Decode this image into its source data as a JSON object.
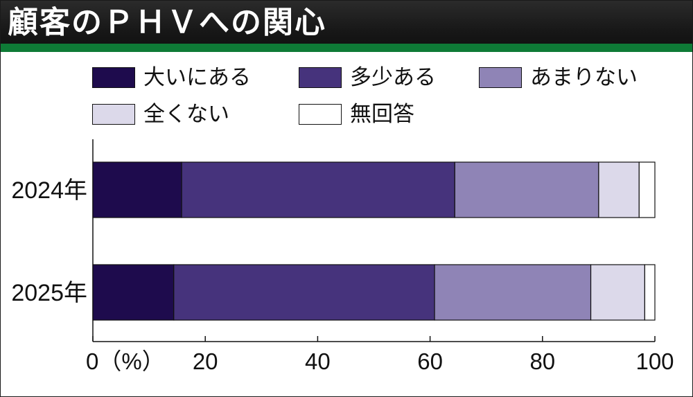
{
  "title": "顧客のＰＨＶへの関心",
  "colors": {
    "header_bg": "#1a1a1a",
    "header_stripe": "#0e7a36",
    "series": [
      "#1e0b4d",
      "#46337c",
      "#8f84b6",
      "#dcd9ea",
      "#ffffff"
    ]
  },
  "legend": [
    "大いにある",
    "多少ある",
    "あまりない",
    "全くない",
    "無回答"
  ],
  "chart_data": {
    "type": "bar",
    "orientation": "horizontal",
    "stacked": true,
    "title": "顧客のＰＨＶへの関心",
    "categories": [
      "2024年",
      "2025年"
    ],
    "series": [
      {
        "name": "大いにある",
        "values": [
          15.8,
          14.4
        ]
      },
      {
        "name": "多少ある",
        "values": [
          48.6,
          46.4
        ]
      },
      {
        "name": "あまりない",
        "values": [
          25.6,
          27.8
        ]
      },
      {
        "name": "全くない",
        "values": [
          7.2,
          9.6
        ]
      },
      {
        "name": "無回答",
        "values": [
          2.8,
          1.8
        ]
      }
    ],
    "xlim": [
      0,
      100
    ],
    "x_ticks": [
      "0（%）",
      "20",
      "40",
      "60",
      "80",
      "100"
    ],
    "grid": false,
    "legend_position": "top"
  }
}
